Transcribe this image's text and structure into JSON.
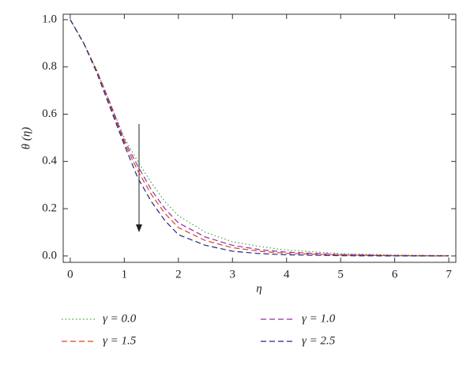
{
  "chart_data": {
    "type": "line",
    "xlabel": "η",
    "ylabel": "θ (η)",
    "x": [
      0,
      0.25,
      0.5,
      0.75,
      1,
      1.25,
      1.5,
      1.75,
      2,
      2.5,
      3,
      3.5,
      4,
      5,
      6,
      7
    ],
    "series": [
      {
        "name": "γ = 0.0",
        "color": "#3aa83a",
        "dash": "dotted",
        "values": [
          1.0,
          0.9,
          0.78,
          0.64,
          0.5,
          0.4,
          0.31,
          0.23,
          0.17,
          0.1,
          0.06,
          0.04,
          0.025,
          0.01,
          0.004,
          0.002
        ]
      },
      {
        "name": "γ = 1.0",
        "color": "#9b2aa8",
        "dash": "dashed",
        "values": [
          1.0,
          0.9,
          0.78,
          0.64,
          0.49,
          0.38,
          0.28,
          0.2,
          0.14,
          0.08,
          0.045,
          0.027,
          0.016,
          0.006,
          0.002,
          0.001
        ]
      },
      {
        "name": "γ = 1.5",
        "color": "#e0401a",
        "dash": "dashed",
        "values": [
          1.0,
          0.9,
          0.78,
          0.63,
          0.48,
          0.36,
          0.26,
          0.18,
          0.12,
          0.065,
          0.035,
          0.02,
          0.011,
          0.004,
          0.001,
          0.0
        ]
      },
      {
        "name": "γ = 2.5",
        "color": "#1c2a8a",
        "dash": "dashed",
        "values": [
          1.0,
          0.9,
          0.77,
          0.62,
          0.47,
          0.33,
          0.23,
          0.15,
          0.09,
          0.045,
          0.02,
          0.01,
          0.005,
          0.001,
          0,
          0
        ]
      }
    ],
    "xlim": [
      -0.13,
      7.13
    ],
    "ylim": [
      -0.027,
      1.023
    ],
    "xticks": [
      0,
      1,
      2,
      3,
      4,
      5,
      6,
      7
    ],
    "yticks": [
      {
        "value": 0,
        "label": "0.0"
      },
      0.2,
      0.4,
      0.6,
      0.8,
      {
        "value": 1,
        "label": "1.0"
      }
    ]
  }
}
